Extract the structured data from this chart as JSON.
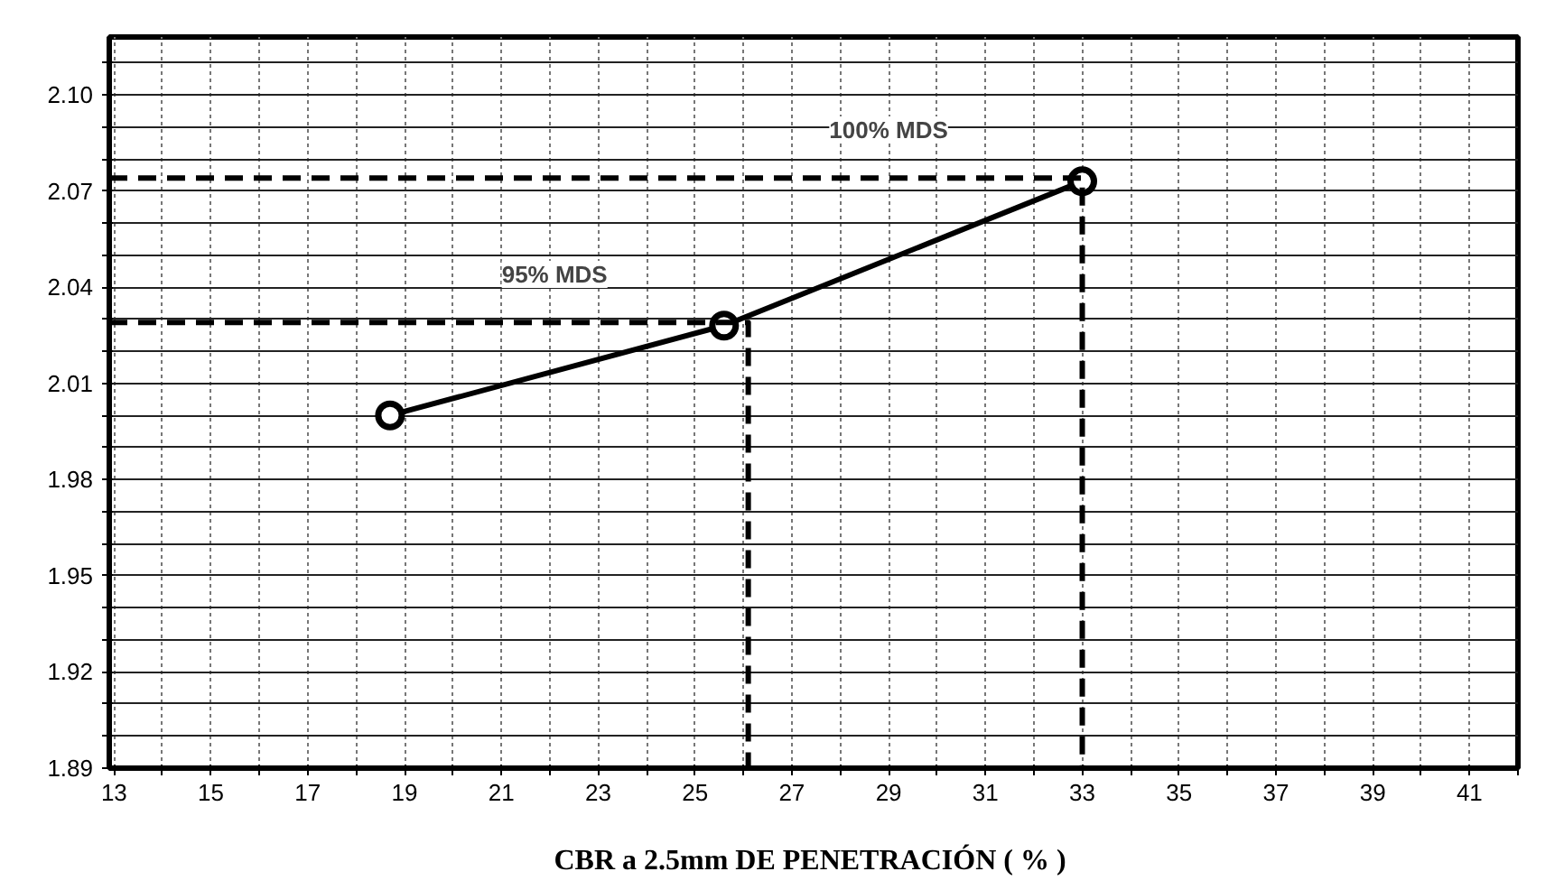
{
  "chart_data": {
    "type": "line",
    "xlabel": "CBR a 2.5mm DE PENETRACIÓN  ( % )",
    "series": [
      {
        "x": [
          18.7,
          25.6,
          33.0
        ],
        "values": [
          2.0,
          2.028,
          2.073
        ],
        "color": "#000000",
        "marker": "circle",
        "line_style": "solid"
      },
      {
        "x": [
          12.9,
          26.1,
          26.1
        ],
        "values": [
          2.029,
          2.029,
          1.89
        ],
        "color": "#000000",
        "marker": "none",
        "line_style": "dashed"
      },
      {
        "x": [
          12.9,
          33.0,
          33.0
        ],
        "values": [
          2.074,
          2.074,
          1.89
        ],
        "color": "#000000",
        "marker": "none",
        "line_style": "dashed"
      }
    ],
    "annotations": [
      "95% MDS",
      "100% MDS"
    ],
    "xlim": [
      12.9,
      42.0
    ],
    "ylim": [
      1.89,
      2.118
    ],
    "xticks": [
      13,
      {
        "value": 14,
        "label": null
      },
      15,
      {
        "value": 16,
        "label": null
      },
      17,
      {
        "value": 18,
        "label": null
      },
      19,
      {
        "value": 20,
        "label": null
      },
      21,
      {
        "value": 22,
        "label": null
      },
      23,
      {
        "value": 24,
        "label": null
      },
      25,
      {
        "value": 26,
        "label": null
      },
      27,
      {
        "value": 28,
        "label": null
      },
      29,
      {
        "value": 30,
        "label": null
      },
      31,
      {
        "value": 32,
        "label": null
      },
      33,
      {
        "value": 34,
        "label": null
      },
      35,
      {
        "value": 36,
        "label": null
      },
      37,
      {
        "value": 38,
        "label": null
      },
      39,
      {
        "value": 40,
        "label": null
      },
      41,
      {
        "value": 42,
        "label": null
      }
    ],
    "yticks": [
      {
        "value": 1.89,
        "label": "1.89"
      },
      {
        "value": 1.9,
        "label": null
      },
      {
        "value": 1.91,
        "label": null
      },
      {
        "value": 1.92,
        "label": "1.92"
      },
      {
        "value": 1.93,
        "label": null
      },
      {
        "value": 1.94,
        "label": null
      },
      {
        "value": 1.95,
        "label": "1.95"
      },
      {
        "value": 1.96,
        "label": null
      },
      {
        "value": 1.97,
        "label": null
      },
      {
        "value": 1.98,
        "label": "1.98"
      },
      {
        "value": 1.99,
        "label": null
      },
      {
        "value": 2.0,
        "label": null
      },
      {
        "value": 2.01,
        "label": "2.01"
      },
      {
        "value": 2.02,
        "label": null
      },
      {
        "value": 2.03,
        "label": null
      },
      {
        "value": 2.04,
        "label": "2.04"
      },
      {
        "value": 2.05,
        "label": null
      },
      {
        "value": 2.06,
        "label": null
      },
      {
        "value": 2.07,
        "label": "2.07"
      },
      {
        "value": 2.08,
        "label": null
      },
      {
        "value": 2.09,
        "label": null
      },
      {
        "value": 2.1,
        "label": "2.10"
      },
      {
        "value": 2.11,
        "label": null
      }
    ],
    "grid": true
  }
}
